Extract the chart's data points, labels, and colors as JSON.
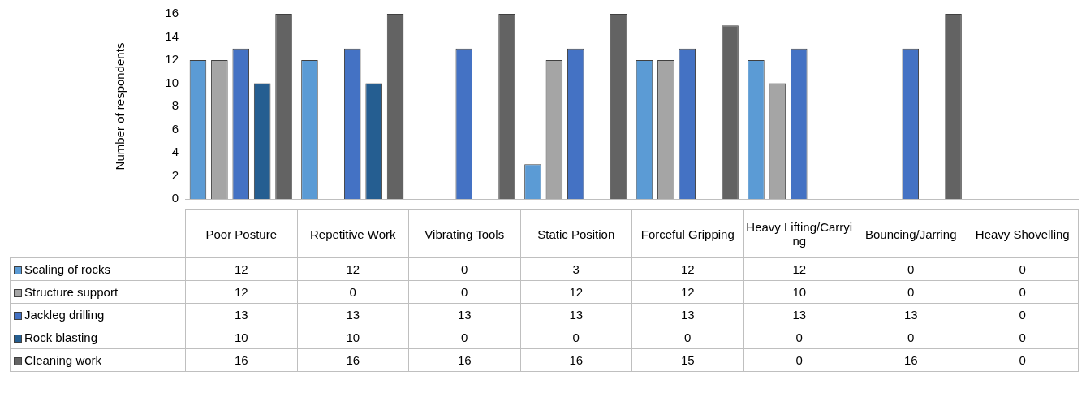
{
  "chart_data": {
    "type": "bar",
    "ylabel": "Number of respondents",
    "categories": [
      "Poor Posture",
      "Repetitive Work",
      "Vibrating Tools",
      "Static Position",
      "Forceful Gripping",
      "Heavy Lifting/Carrying",
      "Bouncing/Jarring",
      "Heavy Shovelling"
    ],
    "series": [
      {
        "name": "Scaling of rocks",
        "color": "#5b9bd5",
        "values": [
          12,
          12,
          0,
          3,
          12,
          12,
          0,
          0
        ]
      },
      {
        "name": "Structure support",
        "color": "#a5a5a5",
        "values": [
          12,
          0,
          0,
          12,
          12,
          10,
          0,
          0
        ]
      },
      {
        "name": "Jackleg drilling",
        "color": "#4472c4",
        "values": [
          13,
          13,
          13,
          13,
          13,
          13,
          13,
          0
        ]
      },
      {
        "name": "Rock blasting",
        "color": "#255e91",
        "values": [
          10,
          10,
          0,
          0,
          0,
          0,
          0,
          0
        ]
      },
      {
        "name": "Cleaning work",
        "color": "#636363",
        "values": [
          16,
          16,
          16,
          16,
          15,
          0,
          16,
          0
        ]
      }
    ],
    "ylim": [
      0,
      16
    ],
    "yticks": [
      0,
      2,
      4,
      6,
      8,
      10,
      12,
      14,
      16
    ],
    "grid": false,
    "legend": "bottom",
    "data_labels": true
  }
}
